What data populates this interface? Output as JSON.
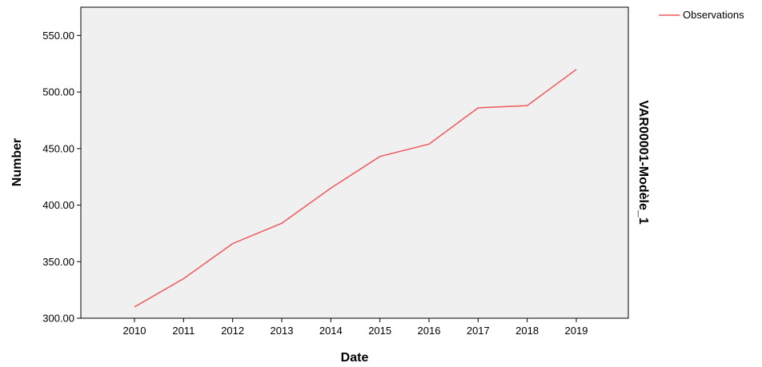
{
  "chart_data": {
    "type": "line",
    "xlabel": "Date",
    "ylabel": "Number",
    "side_title": "VAR00001-Modèle_1",
    "categories": [
      "2010",
      "2011",
      "2012",
      "2013",
      "2014",
      "2015",
      "2016",
      "2017",
      "2018",
      "2019"
    ],
    "series": [
      {
        "name": "Observations",
        "color": "#f0585a",
        "values": [
          310,
          335,
          366,
          384,
          415,
          443,
          454,
          486,
          488,
          520
        ]
      }
    ],
    "ylim": [
      300,
      575
    ],
    "yticks": [
      300,
      350,
      400,
      450,
      500,
      550
    ],
    "ytick_labels": [
      "300.00",
      "350.00",
      "400.00",
      "450.00",
      "500.00",
      "550.00"
    ],
    "grid": false,
    "legend_position": "top-right",
    "plot_background": "#f0f0f0"
  }
}
